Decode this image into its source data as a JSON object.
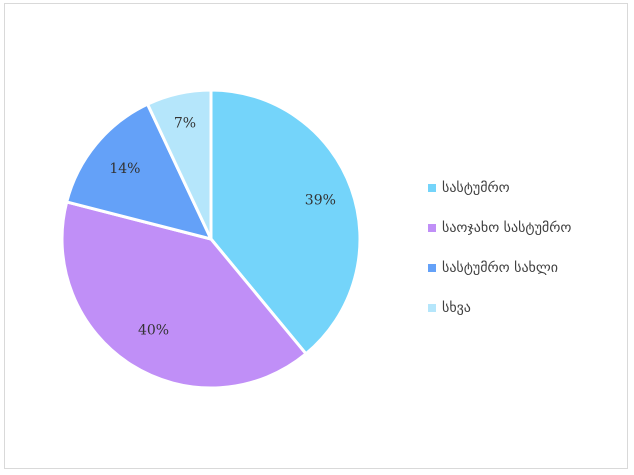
{
  "chart_data": {
    "type": "pie",
    "categories": [
      "სასტუმრო",
      "საოჯახო სასტუმრო",
      "სასტუმრო სახლი",
      "სხვა"
    ],
    "values": [
      39,
      40,
      14,
      7
    ],
    "data_labels": [
      "39%",
      "40%",
      "14%",
      "7%"
    ],
    "colors": [
      "#74d4fa",
      "#c08ff7",
      "#64a1f8",
      "#b5e6fb"
    ],
    "legend_position": "right"
  }
}
